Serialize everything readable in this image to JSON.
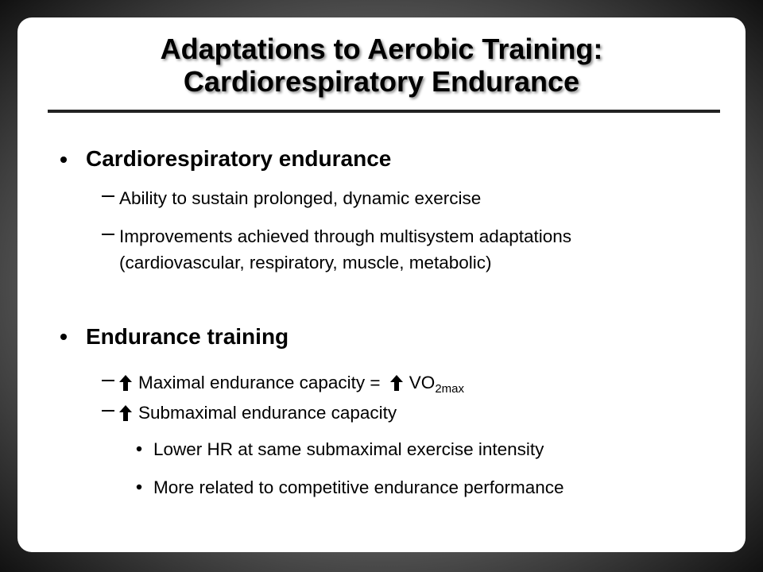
{
  "title": [
    "Adaptations to Aerobic Training:",
    "Cardiorespiratory Endurance"
  ],
  "bullets": [
    {
      "text": "Cardiorespiratory endurance",
      "items": [
        {
          "text": "Ability to sustain prolonged, dynamic exercise"
        },
        {
          "text": "Improvements achieved through multisystem adaptations (cardiovascular, respiratory, muscle, metabolic)"
        }
      ]
    },
    {
      "text": "Endurance training",
      "items": [
        {
          "text": "Maximal endurance capacity =",
          "symbol": "VO",
          "subscript": "2max"
        },
        {
          "text": "Submaximal endurance capacity",
          "items": [
            "Lower HR at same submaximal exercise intensity",
            "More related to competitive endurance performance"
          ]
        }
      ]
    }
  ]
}
